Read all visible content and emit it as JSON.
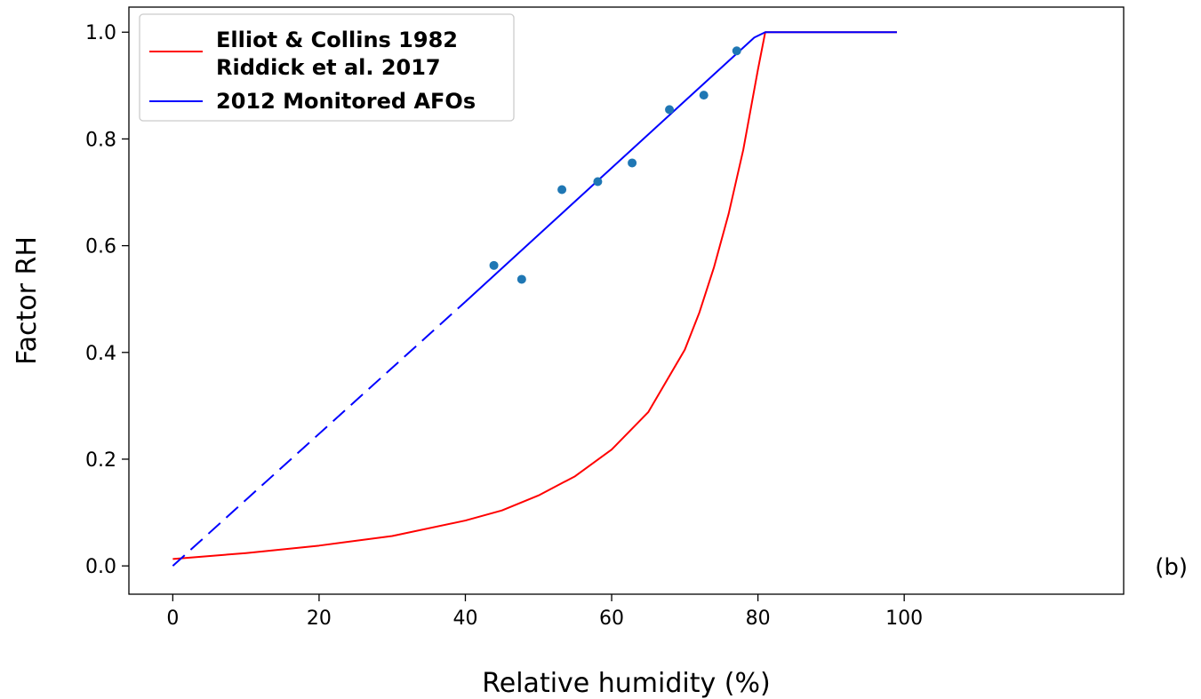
{
  "chart_data": {
    "type": "line",
    "panel_label": "(b)",
    "xlabel": "Relative humidity (%)",
    "ylabel": "Factor RH",
    "xlim": [
      -6,
      130
    ],
    "ylim": [
      -0.053,
      1.047
    ],
    "xticks": [
      0,
      20,
      40,
      60,
      80,
      100
    ],
    "xtick_labels": [
      "0",
      "20",
      "40",
      "60",
      "80",
      "100"
    ],
    "yticks": [
      0.0,
      0.2,
      0.4,
      0.6,
      0.8,
      1.0
    ],
    "ytick_labels": [
      "0.0",
      "0.2",
      "0.4",
      "0.6",
      "0.8",
      "1.0"
    ],
    "grid": false,
    "legend_position": "top-left",
    "legend": [
      {
        "label": "Elliot & Collins 1982",
        "color": "#ff0000",
        "series": "elliot"
      },
      {
        "label": "Riddick et al. 2017",
        "color": "#ff0000",
        "series": "elliot",
        "continuation": true
      },
      {
        "label": "2012 Monitored AFOs",
        "color": "#0000ff",
        "series": "afo"
      }
    ],
    "series": [
      {
        "id": "elliot",
        "color": "#ff0000",
        "style": "solid",
        "x": [
          0,
          10,
          20,
          30,
          40,
          45,
          50,
          55,
          60,
          65,
          70,
          72,
          74,
          76,
          78,
          80,
          81,
          85,
          90,
          95,
          99
        ],
        "y": [
          0.013,
          0.024,
          0.038,
          0.056,
          0.085,
          0.104,
          0.132,
          0.168,
          0.218,
          0.288,
          0.405,
          0.475,
          0.56,
          0.66,
          0.78,
          0.93,
          1.0,
          1.0,
          1.0,
          1.0,
          1.0
        ]
      },
      {
        "id": "afo-extrapolated",
        "color": "#0000ff",
        "style": "dashed",
        "x": [
          0,
          40
        ],
        "y": [
          0.0,
          0.495
        ]
      },
      {
        "id": "afo",
        "color": "#0000ff",
        "style": "solid",
        "x": [
          40,
          79.5,
          81,
          90,
          99
        ],
        "y": [
          0.495,
          0.99,
          1.0,
          1.0,
          1.0
        ]
      }
    ],
    "points": {
      "color": "#1f77b4",
      "x": [
        43.9,
        47.7,
        53.2,
        58.1,
        62.8,
        67.9,
        72.6,
        77.1
      ],
      "y": [
        0.563,
        0.537,
        0.705,
        0.72,
        0.755,
        0.855,
        0.882,
        0.965
      ]
    }
  }
}
